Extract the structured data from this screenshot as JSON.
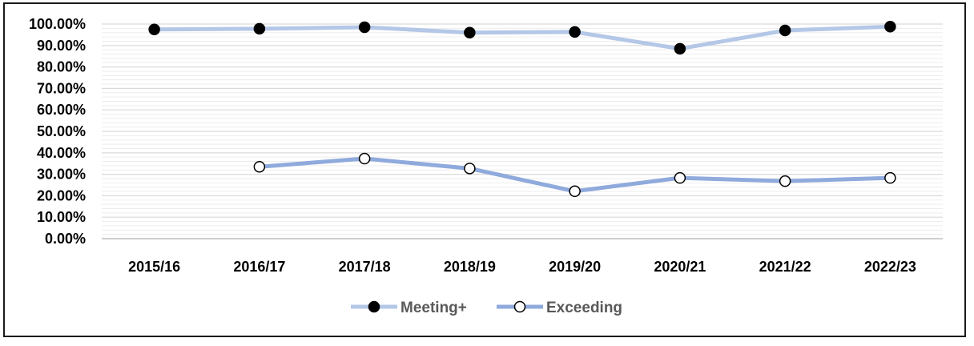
{
  "chart_data": {
    "type": "line",
    "categories": [
      "2015/16",
      "2016/17",
      "2017/18",
      "2018/19",
      "2019/20",
      "2020/21",
      "2021/22",
      "2022/23"
    ],
    "ylim": [
      0,
      100
    ],
    "y_ticks": [
      "0.00%",
      "10.00%",
      "20.00%",
      "30.00%",
      "40.00%",
      "50.00%",
      "60.00%",
      "70.00%",
      "80.00%",
      "90.00%",
      "100.00%"
    ],
    "grid": true,
    "legend_position": "bottom",
    "series": [
      {
        "name": "Meeting+",
        "values": [
          97.5,
          97.8,
          98.5,
          96.0,
          96.3,
          88.5,
          97.0,
          98.8
        ],
        "line_color": "#b4c7e7",
        "marker": "filled-circle",
        "marker_color": "#000000"
      },
      {
        "name": "Exceeding",
        "values": [
          null,
          33.5,
          37.3,
          32.7,
          22.1,
          28.3,
          26.8,
          28.3
        ],
        "line_color": "#8faadc",
        "marker": "open-circle",
        "marker_color": "#ffffff"
      }
    ]
  }
}
